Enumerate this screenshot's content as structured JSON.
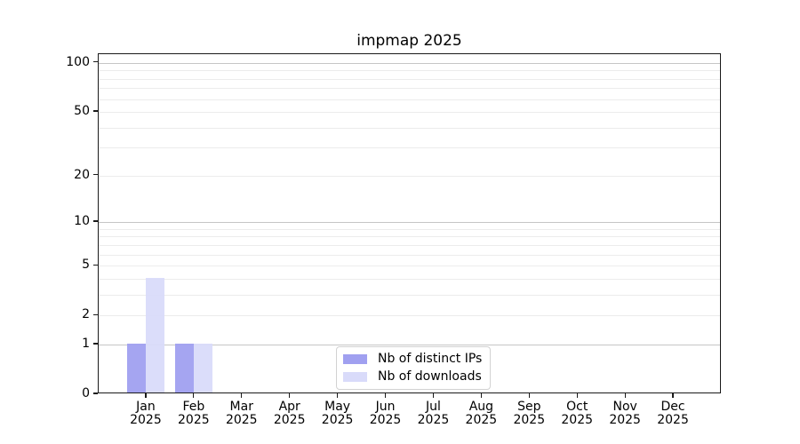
{
  "figure": {
    "background": "#ffffff",
    "text_color": "#000000",
    "spine_color": "#1a1a1a"
  },
  "chart_data": {
    "type": "bar",
    "title": "impmap 2025",
    "categories": [
      "Jan",
      "Feb",
      "Mar",
      "Apr",
      "May",
      "Jun",
      "Jul",
      "Aug",
      "Sep",
      "Oct",
      "Nov",
      "Dec"
    ],
    "category_year": "2025",
    "series": [
      {
        "name": "Nb of distinct IPs",
        "color": "#a0a0f0",
        "values": [
          1,
          1,
          0,
          0,
          0,
          0,
          0,
          0,
          0,
          0,
          0,
          0
        ]
      },
      {
        "name": "Nb of downloads",
        "color": "#d9dbfa",
        "values": [
          4,
          1,
          0,
          0,
          0,
          0,
          0,
          0,
          0,
          0,
          0,
          0
        ]
      }
    ],
    "xlabel": "",
    "ylabel": "",
    "yscale": "log10(1+v)",
    "ylim": [
      0,
      113
    ],
    "y_ticks": [
      0,
      1,
      2,
      5,
      10,
      20,
      50,
      100
    ],
    "grid": {
      "on": true,
      "minor_lines": [
        2,
        3,
        4,
        5,
        6,
        7,
        8,
        9,
        20,
        30,
        40,
        50,
        60,
        70,
        80,
        90
      ],
      "major_lines": [
        1,
        10,
        100
      ],
      "minor_color": "#ececec",
      "major_color": "#c6c6c6"
    },
    "legend": {
      "position": "lower center",
      "border_color": "#d2d2d2",
      "background": "#ffffff"
    }
  }
}
